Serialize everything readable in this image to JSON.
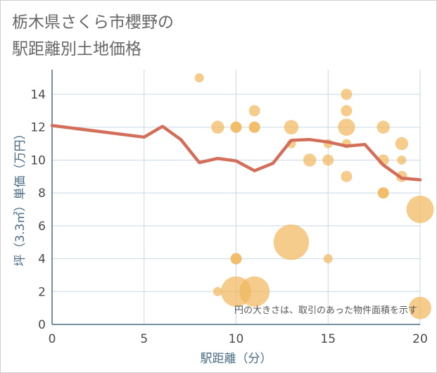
{
  "title": {
    "line1": "栃木県さくら市櫻野の",
    "line2": "駅距離別土地価格"
  },
  "colors": {
    "line": "#d36e5a",
    "bubble": "#f1b95e",
    "grid": "#c8d8e6",
    "axis_text": "#4a6b85"
  },
  "chart_data": {
    "type": "scatter",
    "xlabel": "駅距離（分）",
    "ylabel": "坪（3.3㎡）単価（万円）",
    "xlim": [
      0,
      20
    ],
    "ylim": [
      0,
      15.5
    ],
    "x_ticks": [
      "0",
      "5",
      "10",
      "15",
      "20"
    ],
    "y_ticks": [
      "0",
      "2",
      "4",
      "6",
      "8",
      "10",
      "12",
      "14"
    ],
    "grid": true,
    "note": "円の大きさは、取引のあった物件面積を示す",
    "series": [
      {
        "type": "line",
        "points": [
          {
            "x": 0,
            "y": 12.1
          },
          {
            "x": 5,
            "y": 11.4
          },
          {
            "x": 6,
            "y": 12.05
          },
          {
            "x": 7,
            "y": 11.25
          },
          {
            "x": 8,
            "y": 9.85
          },
          {
            "x": 9,
            "y": 10.1
          },
          {
            "x": 10,
            "y": 9.95
          },
          {
            "x": 11,
            "y": 9.35
          },
          {
            "x": 12,
            "y": 9.8
          },
          {
            "x": 13,
            "y": 11.2
          },
          {
            "x": 14,
            "y": 11.25
          },
          {
            "x": 15,
            "y": 11.1
          },
          {
            "x": 16,
            "y": 10.85
          },
          {
            "x": 17,
            "y": 10.95
          },
          {
            "x": 18,
            "y": 9.7
          },
          {
            "x": 19,
            "y": 8.9
          },
          {
            "x": 20,
            "y": 8.8
          }
        ]
      },
      {
        "type": "bubble",
        "points": [
          {
            "x": 8,
            "y": 15,
            "size": 1
          },
          {
            "x": 9,
            "y": 12,
            "size": 2
          },
          {
            "x": 9,
            "y": 2,
            "size": 1
          },
          {
            "x": 10,
            "y": 12,
            "size": 1.5
          },
          {
            "x": 10,
            "y": 12,
            "size": 1.5
          },
          {
            "x": 10,
            "y": 4,
            "size": 1.5
          },
          {
            "x": 10,
            "y": 4,
            "size": 1.5
          },
          {
            "x": 10,
            "y": 2,
            "size": 11
          },
          {
            "x": 11,
            "y": 13,
            "size": 1.5
          },
          {
            "x": 11,
            "y": 12,
            "size": 1.5
          },
          {
            "x": 11,
            "y": 12,
            "size": 1.5
          },
          {
            "x": 11,
            "y": 2,
            "size": 11
          },
          {
            "x": 13,
            "y": 12,
            "size": 2.5
          },
          {
            "x": 13,
            "y": 11,
            "size": 1
          },
          {
            "x": 13,
            "y": 5,
            "size": 15
          },
          {
            "x": 14,
            "y": 10,
            "size": 2
          },
          {
            "x": 15,
            "y": 11,
            "size": 1
          },
          {
            "x": 15,
            "y": 10,
            "size": 1.5
          },
          {
            "x": 15,
            "y": 4,
            "size": 1
          },
          {
            "x": 16,
            "y": 14,
            "size": 1.5
          },
          {
            "x": 16,
            "y": 13,
            "size": 1.5
          },
          {
            "x": 16,
            "y": 12,
            "size": 3.5
          },
          {
            "x": 16,
            "y": 11,
            "size": 1
          },
          {
            "x": 16,
            "y": 9,
            "size": 1.5
          },
          {
            "x": 18,
            "y": 12,
            "size": 2
          },
          {
            "x": 18,
            "y": 10,
            "size": 1.5
          },
          {
            "x": 18,
            "y": 8,
            "size": 1.5
          },
          {
            "x": 18,
            "y": 8,
            "size": 1.5
          },
          {
            "x": 19,
            "y": 11,
            "size": 2
          },
          {
            "x": 19,
            "y": 10,
            "size": 1
          },
          {
            "x": 19,
            "y": 9,
            "size": 1.5
          },
          {
            "x": 20,
            "y": 7,
            "size": 9
          },
          {
            "x": 20,
            "y": 1,
            "size": 6
          }
        ]
      }
    ]
  }
}
